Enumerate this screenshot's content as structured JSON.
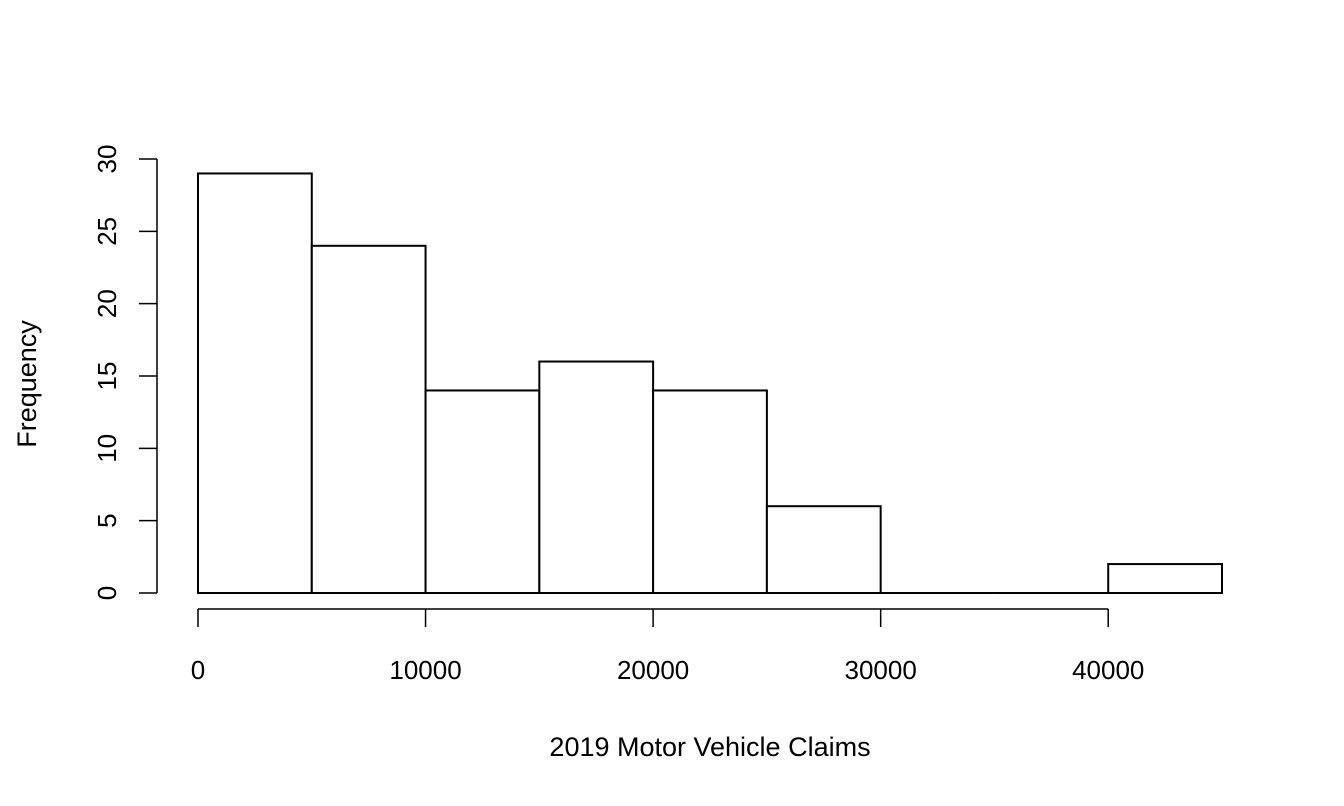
{
  "chart_data": {
    "type": "bar",
    "subtype": "histogram",
    "title": "",
    "xlabel": "2019 Motor Vehicle Claims",
    "ylabel": "Frequency",
    "bins": [
      {
        "start": 0,
        "end": 5000,
        "count": 29
      },
      {
        "start": 5000,
        "end": 10000,
        "count": 24
      },
      {
        "start": 10000,
        "end": 15000,
        "count": 14
      },
      {
        "start": 15000,
        "end": 20000,
        "count": 16
      },
      {
        "start": 20000,
        "end": 25000,
        "count": 14
      },
      {
        "start": 25000,
        "end": 30000,
        "count": 6
      },
      {
        "start": 30000,
        "end": 35000,
        "count": 0
      },
      {
        "start": 35000,
        "end": 40000,
        "count": 0
      },
      {
        "start": 40000,
        "end": 45000,
        "count": 2
      }
    ],
    "xlim": [
      0,
      45000
    ],
    "ylim": [
      0,
      30
    ],
    "x_ticks": [
      0,
      10000,
      20000,
      30000,
      40000
    ],
    "x_tick_labels": [
      "0",
      "10000",
      "20000",
      "30000",
      "40000"
    ],
    "y_ticks": [
      0,
      5,
      10,
      15,
      20,
      25,
      30
    ],
    "y_tick_labels": [
      "0",
      "5",
      "10",
      "15",
      "20",
      "25",
      "30"
    ],
    "grid": false,
    "legend": "none",
    "bar_fill": "#ffffff",
    "bar_stroke": "#000000"
  }
}
